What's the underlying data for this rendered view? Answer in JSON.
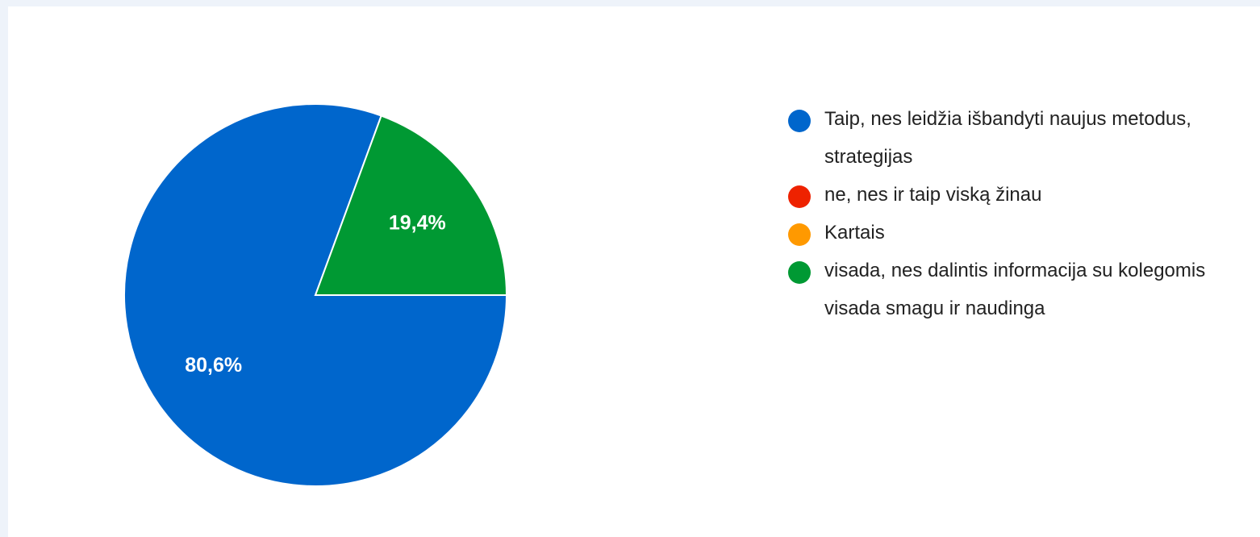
{
  "chart_data": {
    "type": "pie",
    "categories": [
      "Taip, nes leidžia išbandyti naujus metodus, strategijas",
      "ne, nes ir taip viską žinau",
      "Kartais",
      "visada, nes dalintis informacija su kolegomis visada smagu ir naudinga"
    ],
    "values": [
      80.6,
      0,
      0,
      19.4
    ],
    "value_labels": [
      "80,6%",
      null,
      null,
      "19,4%"
    ],
    "colors": [
      "#0066cc",
      "#ee2200",
      "#ff9900",
      "#009933"
    ]
  }
}
